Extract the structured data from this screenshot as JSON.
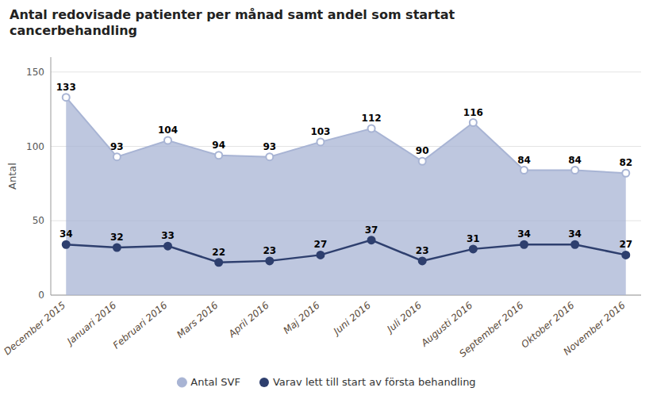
{
  "chart_data": {
    "type": "line",
    "title": "Antal redovisade patienter per månad samt andel som startat\ncancerbehandling",
    "ylabel": "Antal",
    "categories": [
      "December 2015",
      "Januari 2016",
      "Februari 2016",
      "Mars 2016",
      "April 2016",
      "Maj 2016",
      "Juni 2016",
      "Juli 2016",
      "Augusti 2016",
      "September 2016",
      "Oktober 2016",
      "November 2016"
    ],
    "series": [
      {
        "name": "Antal SVF",
        "type": "area",
        "color": "#a8b4d4",
        "marker": "circle",
        "values": [
          133,
          93,
          104,
          94,
          93,
          103,
          112,
          90,
          116,
          84,
          84,
          82
        ]
      },
      {
        "name": "Varav lett till start av första behandling",
        "type": "line",
        "color": "#2e3f6e",
        "marker": "circle",
        "values": [
          34,
          32,
          33,
          22,
          23,
          27,
          37,
          23,
          31,
          34,
          34,
          27
        ]
      }
    ],
    "ylim": [
      0,
      160
    ],
    "yticks": [
      0,
      50,
      100,
      150
    ],
    "grid": true,
    "data_labels": true,
    "legend": "bottom"
  }
}
